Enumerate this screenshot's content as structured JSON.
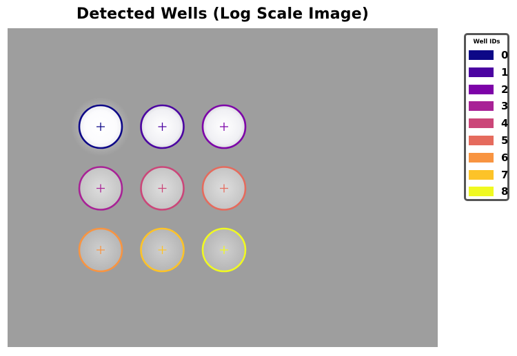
{
  "title": "Detected Wells (Log Scale Image)",
  "legend": {
    "title": "Well IDs",
    "entries": [
      {
        "id": "0",
        "color": "#0d0887"
      },
      {
        "id": "1",
        "color": "#4b03a1"
      },
      {
        "id": "2",
        "color": "#7d03a8"
      },
      {
        "id": "3",
        "color": "#a82296"
      },
      {
        "id": "4",
        "color": "#cb4679"
      },
      {
        "id": "5",
        "color": "#e56b5d"
      },
      {
        "id": "6",
        "color": "#f89441"
      },
      {
        "id": "7",
        "color": "#fdc328"
      },
      {
        "id": "8",
        "color": "#f0f921"
      }
    ]
  },
  "wells": [
    {
      "id": "0",
      "row": 0,
      "col": 0,
      "brightness": "bright"
    },
    {
      "id": "1",
      "row": 0,
      "col": 1,
      "brightness": "light"
    },
    {
      "id": "2",
      "row": 0,
      "col": 2,
      "brightness": "light"
    },
    {
      "id": "3",
      "row": 1,
      "col": 0,
      "brightness": "medium"
    },
    {
      "id": "4",
      "row": 1,
      "col": 1,
      "brightness": "medium"
    },
    {
      "id": "5",
      "row": 1,
      "col": 2,
      "brightness": "medium"
    },
    {
      "id": "6",
      "row": 2,
      "col": 0,
      "brightness": "dim"
    },
    {
      "id": "7",
      "row": 2,
      "col": 1,
      "brightness": "dim"
    },
    {
      "id": "8",
      "row": 2,
      "col": 2,
      "brightness": "dim"
    }
  ],
  "colors": {
    "background": "#9e9e9e",
    "legend_border": "#555555"
  }
}
